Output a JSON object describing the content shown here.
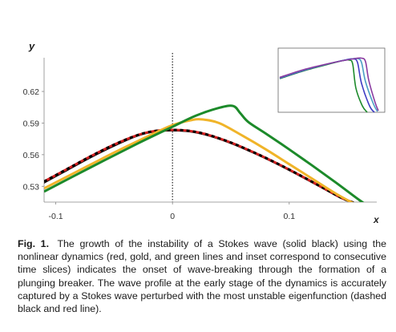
{
  "chart_data": {
    "type": "line",
    "title": "",
    "xlabel": "x",
    "ylabel": "y",
    "xlim": [
      -0.11,
      0.175
    ],
    "ylim": [
      0.515,
      0.652
    ],
    "x_ticks": [
      -0.1,
      0,
      0.1
    ],
    "x_tick_labels": [
      "-0.1",
      "0",
      "0.1"
    ],
    "y_ticks": [
      0.53,
      0.56,
      0.59,
      0.62
    ],
    "y_tick_labels": [
      "0.53",
      "0.56",
      "0.59",
      "0.62"
    ],
    "grid": false,
    "legend": "none",
    "vertical_marker_x": 0,
    "series": [
      {
        "color": "#000000",
        "style": "solid-thin",
        "x": [
          -0.11,
          -0.09,
          -0.07,
          -0.05,
          -0.03,
          -0.015,
          0,
          0.015,
          0.03,
          0.05,
          0.07,
          0.09,
          0.11,
          0.13,
          0.145,
          0.157
        ],
        "y": [
          0.533,
          0.545,
          0.557,
          0.568,
          0.5775,
          0.5815,
          0.5825,
          0.5815,
          0.578,
          0.5705,
          0.561,
          0.5505,
          0.539,
          0.527,
          0.518,
          0.513
        ]
      },
      {
        "color": "#d42020",
        "style": "solid-thick",
        "x": [
          -0.11,
          -0.09,
          -0.07,
          -0.05,
          -0.03,
          -0.015,
          0,
          0.015,
          0.03,
          0.05,
          0.07,
          0.09,
          0.11,
          0.13,
          0.145,
          0.155
        ],
        "y": [
          0.5345,
          0.5465,
          0.5585,
          0.5695,
          0.5785,
          0.5825,
          0.5835,
          0.5825,
          0.579,
          0.5715,
          0.562,
          0.5515,
          0.54,
          0.528,
          0.519,
          0.5145
        ]
      },
      {
        "color": "#000000",
        "style": "dashed",
        "x": [
          -0.11,
          -0.09,
          -0.07,
          -0.05,
          -0.03,
          -0.015,
          0,
          0.015,
          0.03,
          0.05,
          0.07,
          0.09,
          0.11,
          0.13,
          0.145,
          0.155
        ],
        "y": [
          0.5345,
          0.5465,
          0.5585,
          0.5695,
          0.5785,
          0.5825,
          0.5835,
          0.5825,
          0.579,
          0.5715,
          0.562,
          0.5515,
          0.54,
          0.528,
          0.519,
          0.5145
        ]
      },
      {
        "color": "#f0b429",
        "style": "solid-thick",
        "x": [
          -0.11,
          -0.08,
          -0.05,
          -0.02,
          0,
          0.015,
          0.025,
          0.04,
          0.06,
          0.08,
          0.1,
          0.12,
          0.14,
          0.158
        ],
        "y": [
          0.528,
          0.545,
          0.562,
          0.578,
          0.588,
          0.5925,
          0.5935,
          0.59,
          0.578,
          0.565,
          0.551,
          0.537,
          0.523,
          0.512
        ]
      },
      {
        "color": "#1c8a2a",
        "style": "solid-thick",
        "x": [
          -0.11,
          -0.07,
          -0.03,
          0,
          0.02,
          0.04,
          0.052,
          0.058,
          0.065,
          0.08,
          0.1,
          0.12,
          0.14,
          0.16,
          0.17
        ],
        "y": [
          0.525,
          0.548,
          0.5705,
          0.5865,
          0.597,
          0.6045,
          0.6062,
          0.5995,
          0.591,
          0.58,
          0.565,
          0.5495,
          0.5335,
          0.517,
          0.5095
        ]
      }
    ],
    "inset": {
      "series_colors": [
        "#1c8a2a",
        "#3f3cc4",
        "#4b9fc4",
        "#8a3aa0"
      ]
    }
  },
  "caption": {
    "label": "Fig. 1.",
    "text": "The growth of the instability of a Stokes wave (solid black) using the nonlinear dynamics (red, gold, and green lines and inset correspond to consecutive time slices) indicates the onset of wave-breaking through the formation of a plunging breaker. The wave profile at the early stage of the dynamics is accurately captured by a Stokes wave perturbed with the most unstable eigenfunction (dashed black and red line)."
  }
}
